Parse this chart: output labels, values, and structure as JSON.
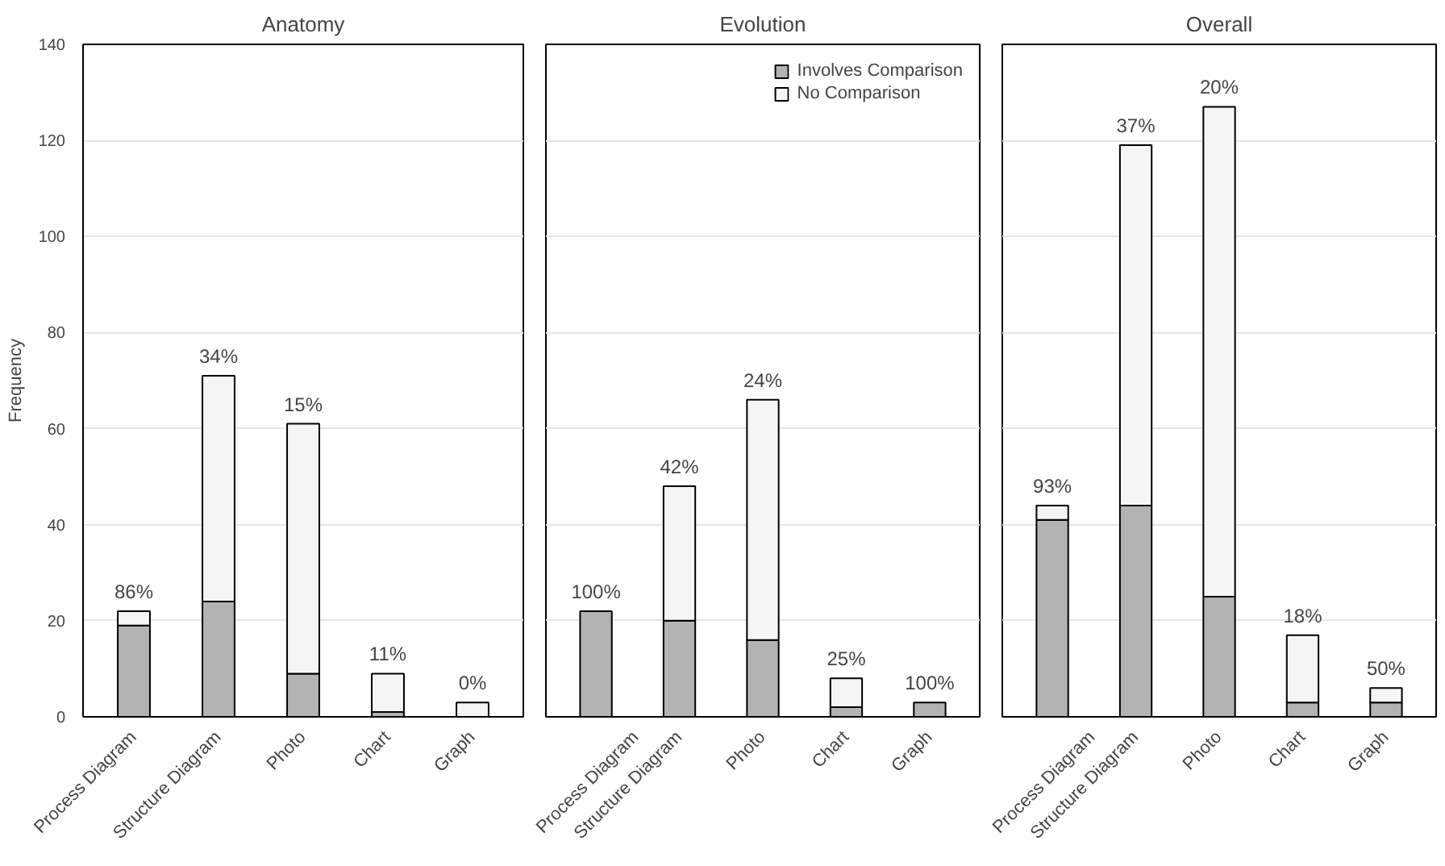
{
  "chart_data": [
    {
      "type": "bar",
      "stacked": true,
      "title": "Anatomy",
      "ylabel": "Frequency",
      "categories": [
        "Process Diagram",
        "Structure Diagram",
        "Photo",
        "Chart",
        "Graph"
      ],
      "ylim": [
        0,
        140
      ],
      "yticks": [
        0,
        20,
        40,
        60,
        80,
        100,
        120,
        140
      ],
      "grid": "y",
      "legend": false,
      "series": [
        {
          "color": "#b3b3b3",
          "values": [
            19,
            24,
            9,
            1,
            0
          ]
        },
        {
          "color": "#f5f5f5",
          "values": [
            3,
            47,
            52,
            8,
            3
          ]
        }
      ],
      "annotations": [
        "86%",
        "34%",
        "15%",
        "11%",
        "0%"
      ]
    },
    {
      "type": "bar",
      "stacked": true,
      "title": "Evolution",
      "categories": [
        "Process Diagram",
        "Structure Diagram",
        "Photo",
        "Chart",
        "Graph"
      ],
      "ylim": [
        0,
        140
      ],
      "yticks": [
        0,
        20,
        40,
        60,
        80,
        100,
        120,
        140
      ],
      "grid": "y",
      "legend": "top right",
      "tick_labels": "x",
      "series": [
        {
          "name": "Involves Comparison",
          "color": "#b3b3b3",
          "values": [
            22,
            20,
            16,
            2,
            3
          ]
        },
        {
          "name": "No Comparison",
          "color": "#f5f5f5",
          "values": [
            0,
            28,
            50,
            6,
            0
          ]
        }
      ],
      "annotations": [
        "100%",
        "42%",
        "24%",
        "25%",
        "100%"
      ]
    },
    {
      "type": "bar",
      "stacked": true,
      "title": "Overall",
      "categories": [
        "Process Diagram",
        "Structure Diagram",
        "Photo",
        "Chart",
        "Graph"
      ],
      "ylim": [
        0,
        140
      ],
      "yticks": [
        0,
        20,
        40,
        60,
        80,
        100,
        120,
        140
      ],
      "grid": "y",
      "legend": false,
      "tick_labels": "x",
      "series": [
        {
          "color": "#b3b3b3",
          "values": [
            41,
            44,
            25,
            3,
            3
          ]
        },
        {
          "color": "#f5f5f5",
          "values": [
            3,
            75,
            102,
            14,
            3
          ]
        }
      ],
      "annotations": [
        "93%",
        "37%",
        "20%",
        "18%",
        "50%"
      ]
    }
  ]
}
